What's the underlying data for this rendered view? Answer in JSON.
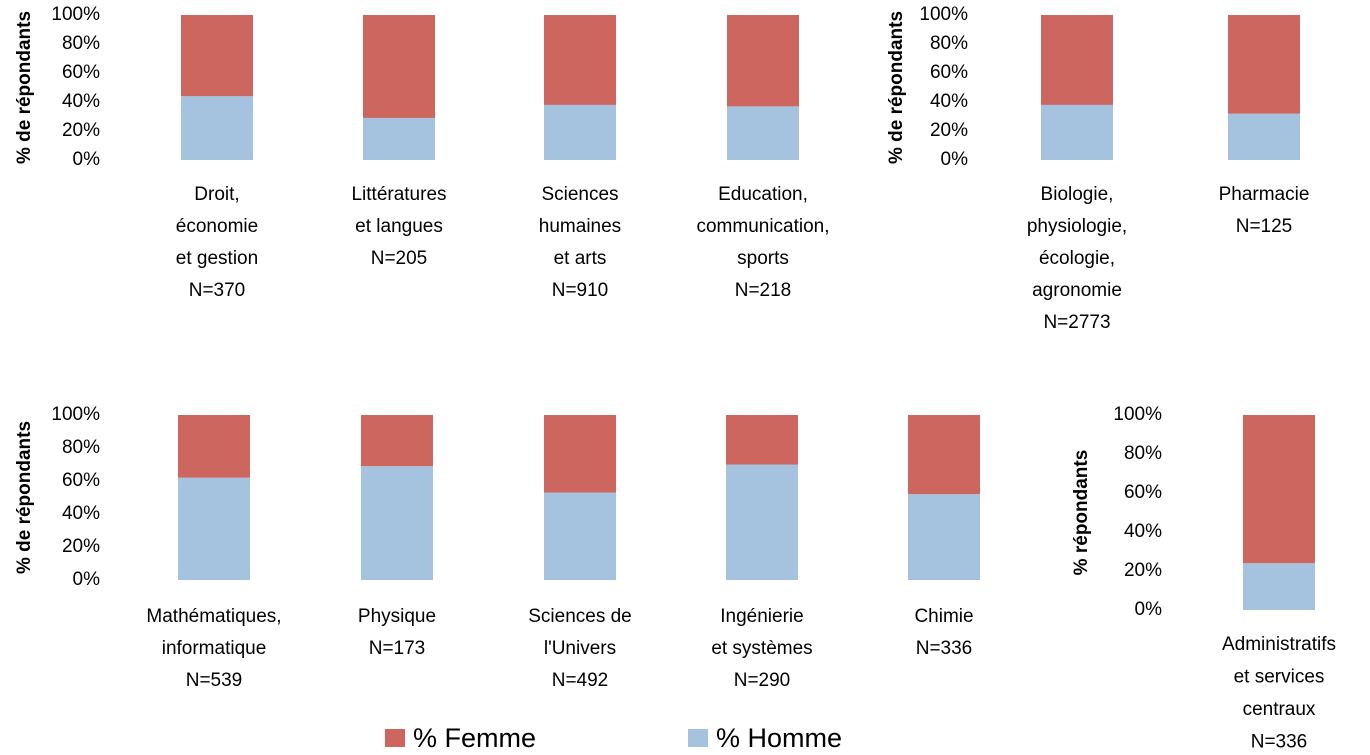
{
  "legend": [
    {
      "name": "% Femme",
      "color": "#cd665f"
    },
    {
      "name": "% Homme",
      "color": "#a5c2de"
    }
  ],
  "chart_data": [
    {
      "type": "bar",
      "stacked": true,
      "y_label": "% de répondants",
      "categories": [
        [
          "Droit,",
          "économie",
          "et gestion",
          "N=370"
        ],
        [
          "Littératures",
          "et langues",
          "N=205"
        ],
        [
          "Sciences",
          "humaines",
          "et arts",
          "N=910"
        ],
        [
          "Education,",
          "communication,",
          "sports",
          "N=218"
        ]
      ],
      "series": [
        {
          "color": "#a5c2de",
          "values": [
            44,
            29,
            38,
            37
          ]
        },
        {
          "color": "#cd665f",
          "values": [
            56,
            71,
            62,
            63
          ]
        }
      ],
      "ylim": [
        0,
        100
      ],
      "yticks": [
        {
          "value": 0,
          "label": "0%"
        },
        {
          "value": 20,
          "label": "20%"
        },
        {
          "value": 40,
          "label": "40%"
        },
        {
          "value": 60,
          "label": "60%"
        },
        {
          "value": 80,
          "label": "80%"
        },
        {
          "value": 100,
          "label": "100%"
        }
      ]
    },
    {
      "type": "bar",
      "stacked": true,
      "y_label": "% de répondants",
      "categories": [
        [
          "Biologie,",
          "physiologie,",
          "écologie,",
          "agronomie",
          "N=2773"
        ],
        [
          "Pharmacie",
          "N=125"
        ]
      ],
      "series": [
        {
          "color": "#a5c2de",
          "values": [
            38,
            32
          ]
        },
        {
          "color": "#cd665f",
          "values": [
            62,
            68
          ]
        }
      ],
      "ylim": [
        0,
        100
      ],
      "yticks": [
        {
          "value": 0,
          "label": "0%"
        },
        {
          "value": 20,
          "label": "20%"
        },
        {
          "value": 40,
          "label": "40%"
        },
        {
          "value": 60,
          "label": "60%"
        },
        {
          "value": 80,
          "label": "80%"
        },
        {
          "value": 100,
          "label": "100%"
        }
      ]
    },
    {
      "type": "bar",
      "stacked": true,
      "y_label": "% de répondants",
      "categories": [
        [
          "Mathématiques,",
          "informatique",
          "N=539"
        ],
        [
          "Physique",
          "N=173"
        ],
        [
          "Sciences de",
          "l'Univers",
          "N=492"
        ],
        [
          "Ingénierie",
          "et systèmes",
          "N=290"
        ],
        [
          "Chimie",
          "N=336"
        ]
      ],
      "series": [
        {
          "color": "#a5c2de",
          "values": [
            62,
            69,
            53,
            70,
            52
          ]
        },
        {
          "color": "#cd665f",
          "values": [
            38,
            31,
            47,
            30,
            48
          ]
        }
      ],
      "ylim": [
        0,
        100
      ],
      "yticks": [
        {
          "value": 0,
          "label": "0%"
        },
        {
          "value": 20,
          "label": "20%"
        },
        {
          "value": 40,
          "label": "40%"
        },
        {
          "value": 60,
          "label": "60%"
        },
        {
          "value": 80,
          "label": "80%"
        },
        {
          "value": 100,
          "label": "100%"
        }
      ]
    },
    {
      "type": "bar",
      "stacked": true,
      "y_label": "% répondants",
      "categories": [
        [
          "Administratifs",
          "et services",
          "centraux",
          "N=336"
        ]
      ],
      "series": [
        {
          "color": "#a5c2de",
          "values": [
            24
          ]
        },
        {
          "color": "#cd665f",
          "values": [
            76
          ]
        }
      ],
      "ylim": [
        0,
        100
      ],
      "yticks": [
        {
          "value": 0,
          "label": "0%"
        },
        {
          "value": 20,
          "label": "20%"
        },
        {
          "value": 40,
          "label": "40%"
        },
        {
          "value": 60,
          "label": "60%"
        },
        {
          "value": 80,
          "label": "80%"
        },
        {
          "value": 100,
          "label": "100%"
        }
      ]
    }
  ]
}
